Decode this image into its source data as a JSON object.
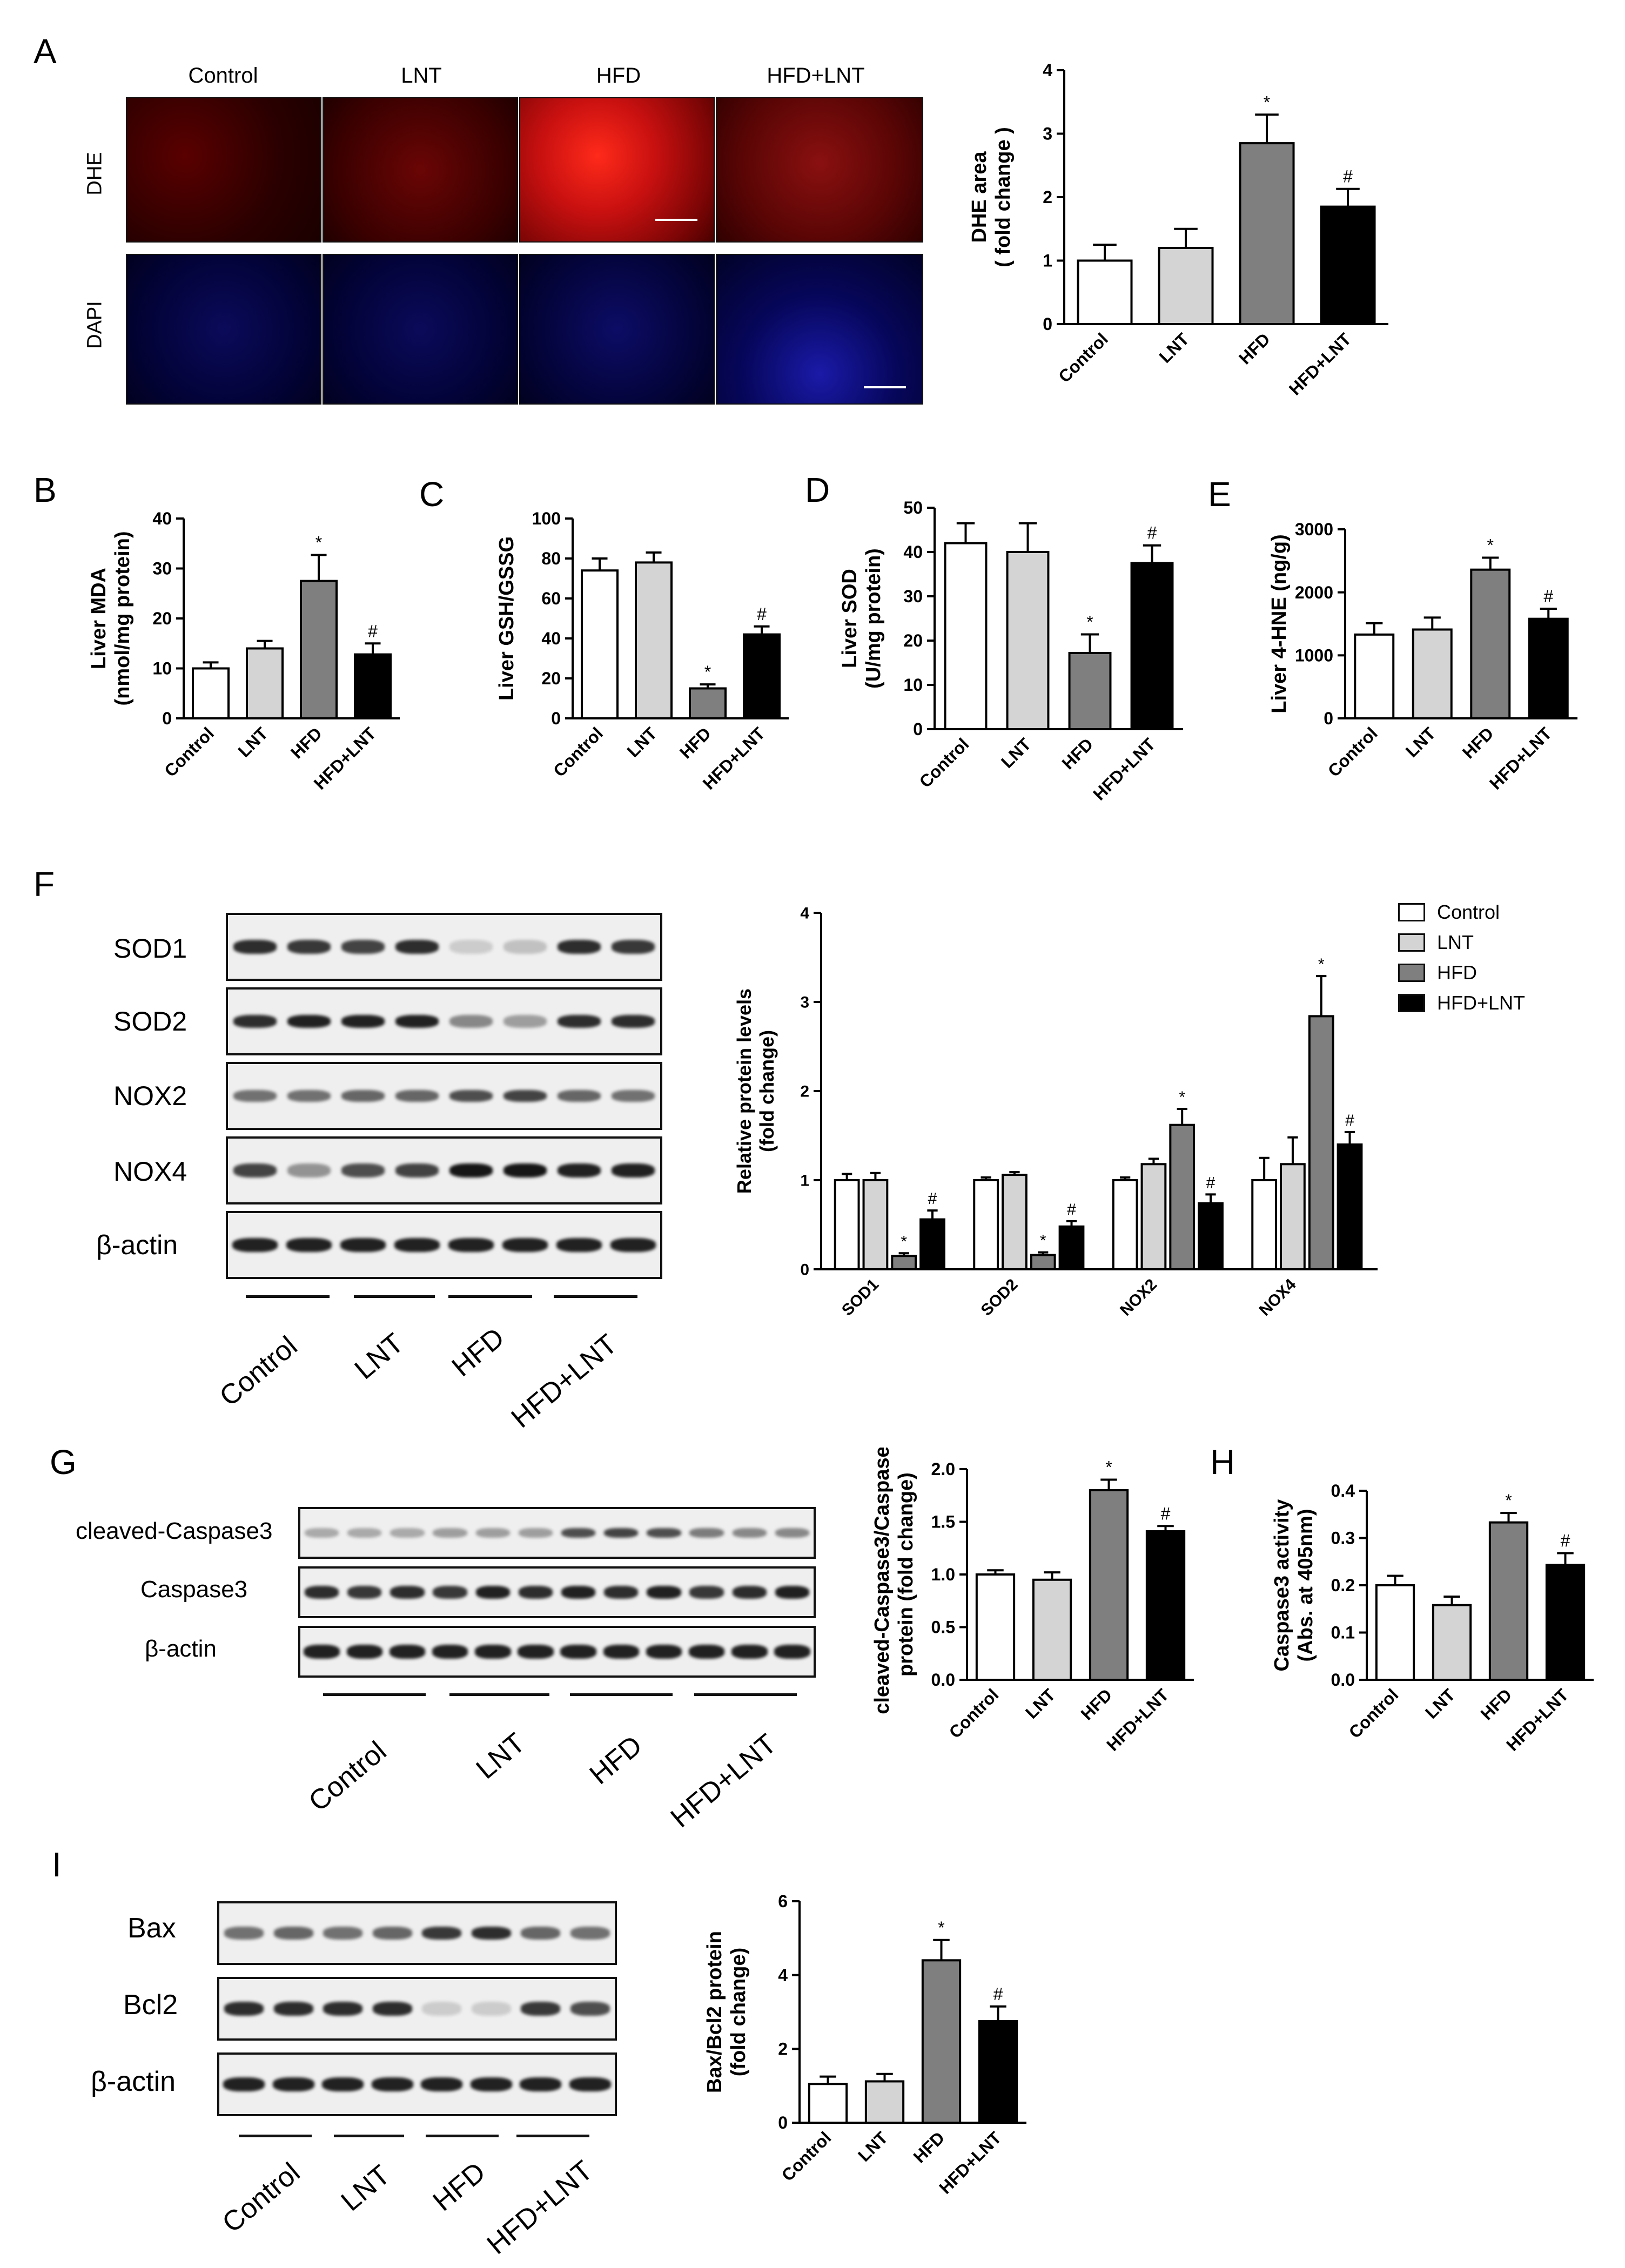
{
  "panels": {
    "A": {
      "letter": "A",
      "columns": [
        "Control",
        "LNT",
        "HFD",
        "HFD+LNT"
      ],
      "rows": [
        "DHE",
        "DAPI"
      ]
    },
    "B": {
      "letter": "B"
    },
    "C": {
      "letter": "C"
    },
    "D": {
      "letter": "D"
    },
    "E": {
      "letter": "E"
    },
    "F": {
      "letter": "F",
      "blot_labels": [
        "SOD1",
        "SOD2",
        "NOX2",
        "NOX4",
        "β-actin"
      ],
      "groups": [
        "Control",
        "LNT",
        "HFD",
        "HFD+LNT"
      ]
    },
    "G": {
      "letter": "G",
      "blot_labels": [
        "cleaved-Caspase3",
        "Caspase3",
        "β-actin"
      ],
      "groups": [
        "Control",
        "LNT",
        "HFD",
        "HFD+LNT"
      ]
    },
    "H": {
      "letter": "H"
    },
    "I": {
      "letter": "I",
      "blot_labels": [
        "Bax",
        "Bcl2",
        "β-actin"
      ],
      "groups": [
        "Control",
        "LNT",
        "HFD",
        "HFD+LNT"
      ]
    }
  },
  "legend": {
    "entries": [
      "Control",
      "LNT",
      "HFD",
      "HFD+LNT"
    ],
    "colors": [
      "#ffffff",
      "#d4d4d4",
      "#7f7f7f",
      "#000000"
    ]
  },
  "chart_data": [
    {
      "id": "A",
      "type": "bar",
      "categories": [
        "Control",
        "LNT",
        "HFD",
        "HFD+LNT"
      ],
      "values": [
        1.0,
        1.2,
        2.85,
        1.85
      ],
      "errors": [
        0.25,
        0.3,
        0.45,
        0.28
      ],
      "marks": [
        "",
        "",
        "*",
        "#"
      ],
      "ylabel": [
        "DHE area",
        "( fold change )"
      ],
      "ylim": [
        0,
        4
      ],
      "yticks": [
        "0",
        "1",
        "2",
        "3",
        "4"
      ]
    },
    {
      "id": "B",
      "type": "bar",
      "categories": [
        "Control",
        "LNT",
        "HFD",
        "HFD+LNT"
      ],
      "values": [
        10,
        14,
        27.5,
        12.8
      ],
      "errors": [
        1.2,
        1.5,
        5.2,
        2.2
      ],
      "marks": [
        "",
        "",
        "*",
        "#"
      ],
      "ylabel": [
        "Liver MDA",
        "(nmol/mg protein)"
      ],
      "ylim": [
        0,
        40
      ],
      "yticks": [
        "0",
        "10",
        "20",
        "30",
        "40"
      ]
    },
    {
      "id": "C",
      "type": "bar",
      "categories": [
        "Control",
        "LNT",
        "HFD",
        "HFD+LNT"
      ],
      "values": [
        74,
        78,
        15,
        42
      ],
      "errors": [
        6,
        5,
        2,
        4
      ],
      "marks": [
        "",
        "",
        "*",
        "#"
      ],
      "ylabel": [
        "Liver  GSH/GSSG"
      ],
      "ylim": [
        0,
        100
      ],
      "yticks": [
        "0",
        "20",
        "40",
        "60",
        "80",
        "100"
      ]
    },
    {
      "id": "D",
      "type": "bar",
      "categories": [
        "Control",
        "LNT",
        "HFD",
        "HFD+LNT"
      ],
      "values": [
        42,
        40,
        17.2,
        37.5
      ],
      "errors": [
        4.5,
        6.5,
        4.2,
        4
      ],
      "marks": [
        "",
        "",
        "*",
        "#"
      ],
      "ylabel": [
        "Liver SOD",
        "(U/mg protein)"
      ],
      "ylim": [
        0,
        50
      ],
      "yticks": [
        "0",
        "10",
        "20",
        "30",
        "40",
        "50"
      ]
    },
    {
      "id": "E",
      "type": "bar",
      "categories": [
        "Control",
        "LNT",
        "HFD",
        "HFD+LNT"
      ],
      "values": [
        1330,
        1410,
        2360,
        1580
      ],
      "errors": [
        180,
        190,
        190,
        160
      ],
      "marks": [
        "",
        "",
        "*",
        "#"
      ],
      "ylabel": [
        "Liver 4-HNE (ng/g)"
      ],
      "ylim": [
        0,
        3000
      ],
      "yticks": [
        "0",
        "1000",
        "2000",
        "3000"
      ]
    },
    {
      "id": "F",
      "type": "bar",
      "categories": [
        "SOD1",
        "SOD2",
        "NOX2",
        "NOX4"
      ],
      "series": [
        {
          "name": "Control",
          "values": [
            1.0,
            1.0,
            1.0,
            1.0
          ],
          "errors": [
            0.07,
            0.03,
            0.03,
            0.25
          ],
          "marks": [
            "",
            "",
            "",
            ""
          ]
        },
        {
          "name": "LNT",
          "values": [
            1.0,
            1.06,
            1.18,
            1.18
          ],
          "errors": [
            0.08,
            0.03,
            0.06,
            0.3
          ],
          "marks": [
            "",
            "",
            "",
            ""
          ]
        },
        {
          "name": "HFD",
          "values": [
            0.15,
            0.16,
            1.62,
            2.84
          ],
          "errors": [
            0.03,
            0.03,
            0.18,
            0.45
          ],
          "marks": [
            "*",
            "*",
            "*",
            "*"
          ]
        },
        {
          "name": "HFD+LNT",
          "values": [
            0.56,
            0.48,
            0.74,
            1.4
          ],
          "errors": [
            0.1,
            0.06,
            0.1,
            0.14
          ],
          "marks": [
            "#",
            "#",
            "#",
            "#"
          ]
        }
      ],
      "ylabel": [
        "Relative protein levels",
        "(fold change)"
      ],
      "ylim": [
        0,
        4
      ],
      "yticks": [
        "0",
        "1",
        "2",
        "3",
        "4"
      ]
    },
    {
      "id": "G",
      "type": "bar",
      "categories": [
        "Control",
        "LNT",
        "HFD",
        "HFD+LNT"
      ],
      "values": [
        1.0,
        0.95,
        1.8,
        1.41
      ],
      "errors": [
        0.04,
        0.07,
        0.1,
        0.05
      ],
      "marks": [
        "",
        "",
        "*",
        "#"
      ],
      "ylabel": [
        "cleaved-Caspase3/Caspase3",
        "protein (fold change)"
      ],
      "ylim": [
        0,
        2.0
      ],
      "yticks": [
        "0.0",
        "0.5",
        "1.0",
        "1.5",
        "2.0"
      ]
    },
    {
      "id": "H",
      "type": "bar",
      "categories": [
        "Control",
        "LNT",
        "HFD",
        "HFD+LNT"
      ],
      "values": [
        0.2,
        0.158,
        0.333,
        0.243
      ],
      "errors": [
        0.02,
        0.018,
        0.02,
        0.025
      ],
      "marks": [
        "",
        "",
        "*",
        "#"
      ],
      "ylabel": [
        "Caspase3  activity",
        "(Abs. at 405nm)"
      ],
      "ylim": [
        0,
        0.4
      ],
      "yticks": [
        "0.0",
        "0.1",
        "0.2",
        "0.3",
        "0.4"
      ]
    },
    {
      "id": "I",
      "type": "bar",
      "categories": [
        "Control",
        "LNT",
        "HFD",
        "HFD+LNT"
      ],
      "values": [
        1.05,
        1.12,
        4.4,
        2.75
      ],
      "errors": [
        0.2,
        0.2,
        0.55,
        0.4
      ],
      "marks": [
        "",
        "",
        "*",
        "#"
      ],
      "ylabel": [
        "Bax/Bcl2 protein",
        "(fold change)"
      ],
      "ylim": [
        0,
        6
      ],
      "yticks": [
        "0",
        "2",
        "4",
        "6"
      ]
    }
  ]
}
